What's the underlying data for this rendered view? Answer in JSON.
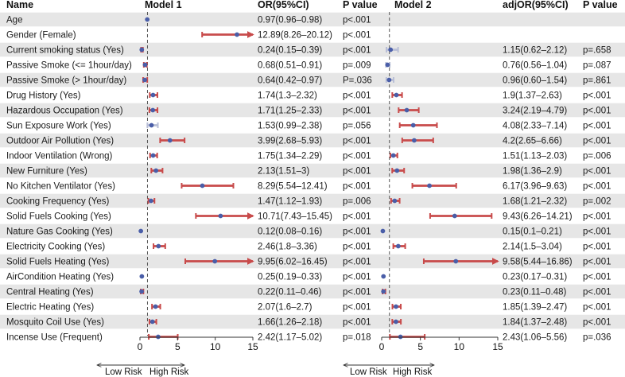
{
  "chart_data": {
    "type": "forest",
    "headers": {
      "name": "Name",
      "model1": "Model 1",
      "or": "OR(95%CI)",
      "p1": "P value",
      "model2": "Model 2",
      "adj_or": "adjOR(95%CI)",
      "p2": "P value"
    },
    "axis": {
      "ticks": [
        0,
        5,
        10,
        15
      ],
      "xlim": [
        0,
        15
      ],
      "reference_line": 1,
      "low_label": "Low Risk",
      "high_label": "High Risk"
    },
    "colors": {
      "stripe": "#e6e6e6",
      "point": "#4a5ea8",
      "ci_significant": "#c84b4b",
      "ci_nonsignificant": "#b9bfd6",
      "reference": "#555555"
    },
    "rows": [
      {
        "name": "Age",
        "m1": {
          "or": 0.97,
          "lo": 0.96,
          "hi": 0.98,
          "label": "0.97(0.96–0.98)",
          "p": "p<.001"
        },
        "m2": null
      },
      {
        "name": "Gender (Female)",
        "m1": {
          "or": 12.89,
          "lo": 8.26,
          "hi": 20.12,
          "label": "12.89(8.26–20.12)",
          "p": "p<.001"
        },
        "m2": null
      },
      {
        "name": "Current smoking status (Yes)",
        "m1": {
          "or": 0.24,
          "lo": 0.15,
          "hi": 0.39,
          "label": "0.24(0.15–0.39)",
          "p": "p<.001"
        },
        "m2": {
          "or": 1.15,
          "lo": 0.62,
          "hi": 2.12,
          "label": "1.15(0.62–2.12)",
          "p": "p=.658"
        }
      },
      {
        "name": "Passive Smoke (<= 1hour/day)",
        "m1": {
          "or": 0.68,
          "lo": 0.51,
          "hi": 0.91,
          "label": "0.68(0.51–0.91)",
          "p": "p=.009"
        },
        "m2": {
          "or": 0.76,
          "lo": 0.56,
          "hi": 1.04,
          "label": "0.76(0.56–1.04)",
          "p": "p=.087"
        }
      },
      {
        "name": "Passive Smoke (> 1hour/day)",
        "m1": {
          "or": 0.64,
          "lo": 0.42,
          "hi": 0.97,
          "label": "0.64(0.42–0.97)",
          "p": "P=.036"
        },
        "m2": {
          "or": 0.96,
          "lo": 0.6,
          "hi": 1.54,
          "label": "0.96(0.60–1.54)",
          "p": "p=.861"
        }
      },
      {
        "name": "Drug History (Yes)",
        "m1": {
          "or": 1.74,
          "lo": 1.3,
          "hi": 2.32,
          "label": "1.74(1.3–2.32)",
          "p": "p<.001"
        },
        "m2": {
          "or": 1.9,
          "lo": 1.37,
          "hi": 2.63,
          "label": "1.9(1.37–2.63)",
          "p": "p<.001"
        }
      },
      {
        "name": "Hazardous Occupation (Yes)",
        "m1": {
          "or": 1.71,
          "lo": 1.25,
          "hi": 2.33,
          "label": "1.71(1.25–2.33)",
          "p": "p<.001"
        },
        "m2": {
          "or": 3.24,
          "lo": 2.19,
          "hi": 4.79,
          "label": "3.24(2.19–4.79)",
          "p": "p<.001"
        }
      },
      {
        "name": "Sun Exposure Work (Yes)",
        "m1": {
          "or": 1.53,
          "lo": 0.99,
          "hi": 2.38,
          "label": "1.53(0.99–2.38)",
          "p": "p=.056"
        },
        "m2": {
          "or": 4.08,
          "lo": 2.33,
          "hi": 7.14,
          "label": "4.08(2.33–7.14)",
          "p": "p<.001"
        }
      },
      {
        "name": "Outdoor Air Pollution (Yes)",
        "m1": {
          "or": 3.99,
          "lo": 2.68,
          "hi": 5.93,
          "label": "3.99(2.68–5.93)",
          "p": "p<.001"
        },
        "m2": {
          "or": 4.2,
          "lo": 2.65,
          "hi": 6.66,
          "label": "4.2(2.65–6.66)",
          "p": "p<.001"
        }
      },
      {
        "name": "Indoor Ventilation (Wrong)",
        "m1": {
          "or": 1.75,
          "lo": 1.34,
          "hi": 2.29,
          "label": "1.75(1.34–2.29)",
          "p": "p<.001"
        },
        "m2": {
          "or": 1.51,
          "lo": 1.13,
          "hi": 2.03,
          "label": "1.51(1.13–2.03)",
          "p": "p=.006"
        }
      },
      {
        "name": "New Furniture (Yes)",
        "m1": {
          "or": 2.13,
          "lo": 1.51,
          "hi": 3,
          "label": "2.13(1.51–3)",
          "p": "p<.001"
        },
        "m2": {
          "or": 1.98,
          "lo": 1.36,
          "hi": 2.9,
          "label": "1.98(1.36–2.9)",
          "p": "p<.001"
        }
      },
      {
        "name": "No Kitchen Ventilator (Yes)",
        "m1": {
          "or": 8.29,
          "lo": 5.54,
          "hi": 12.41,
          "label": "8.29(5.54–12.41)",
          "p": "p<.001"
        },
        "m2": {
          "or": 6.17,
          "lo": 3.96,
          "hi": 9.63,
          "label": "6.17(3.96–9.63)",
          "p": "p<.001"
        }
      },
      {
        "name": "Cooking Frequency (Yes)",
        "m1": {
          "or": 1.47,
          "lo": 1.12,
          "hi": 1.93,
          "label": "1.47(1.12–1.93)",
          "p": "p=.006"
        },
        "m2": {
          "or": 1.68,
          "lo": 1.21,
          "hi": 2.32,
          "label": "1.68(1.21–2.32)",
          "p": "p=.002"
        }
      },
      {
        "name": "Solid Fuels Cooking (Yes)",
        "m1": {
          "or": 10.71,
          "lo": 7.43,
          "hi": 15.45,
          "label": "10.71(7.43–15.45)",
          "p": "p<.001"
        },
        "m2": {
          "or": 9.43,
          "lo": 6.26,
          "hi": 14.21,
          "label": "9.43(6.26–14.21)",
          "p": "p<.001"
        }
      },
      {
        "name": "Nature Gas Cooking (Yes)",
        "m1": {
          "or": 0.12,
          "lo": 0.08,
          "hi": 0.16,
          "label": "0.12(0.08–0.16)",
          "p": "p<.001"
        },
        "m2": {
          "or": 0.15,
          "lo": 0.1,
          "hi": 0.21,
          "label": "0.15(0.1–0.21)",
          "p": "p<.001"
        }
      },
      {
        "name": "Electricity Cooking (Yes)",
        "m1": {
          "or": 2.46,
          "lo": 1.8,
          "hi": 3.36,
          "label": "2.46(1.8–3.36)",
          "p": "p<.001"
        },
        "m2": {
          "or": 2.14,
          "lo": 1.5,
          "hi": 3.04,
          "label": "2.14(1.5–3.04)",
          "p": "p<.001"
        }
      },
      {
        "name": "Solid Fuels Heating (Yes)",
        "m1": {
          "or": 9.95,
          "lo": 6.02,
          "hi": 16.45,
          "label": "9.95(6.02–16.45)",
          "p": "p<.001"
        },
        "m2": {
          "or": 9.58,
          "lo": 5.44,
          "hi": 16.86,
          "label": "9.58(5.44–16.86)",
          "p": "p<.001"
        }
      },
      {
        "name": "AirCondition Heating (Yes)",
        "m1": {
          "or": 0.25,
          "lo": 0.19,
          "hi": 0.33,
          "label": "0.25(0.19–0.33)",
          "p": "p<.001"
        },
        "m2": {
          "or": 0.23,
          "lo": 0.17,
          "hi": 0.31,
          "label": "0.23(0.17–0.31)",
          "p": "p<.001"
        }
      },
      {
        "name": "Central Heating (Yes)",
        "m1": {
          "or": 0.22,
          "lo": 0.11,
          "hi": 0.46,
          "label": "0.22(0.11–0.46)",
          "p": "p<.001"
        },
        "m2": {
          "or": 0.23,
          "lo": 0.11,
          "hi": 0.48,
          "label": "0.23(0.11–0.48)",
          "p": "p<.001"
        }
      },
      {
        "name": "Electric Heating (Yes)",
        "m1": {
          "or": 2.07,
          "lo": 1.6,
          "hi": 2.7,
          "label": "2.07(1.6–2.7)",
          "p": "p<.001"
        },
        "m2": {
          "or": 1.85,
          "lo": 1.39,
          "hi": 2.47,
          "label": "1.85(1.39–2.47)",
          "p": "p<.001"
        }
      },
      {
        "name": "Mosquito Coil Use (Yes)",
        "m1": {
          "or": 1.66,
          "lo": 1.26,
          "hi": 2.18,
          "label": "1.66(1.26–2.18)",
          "p": "p<.001"
        },
        "m2": {
          "or": 1.84,
          "lo": 1.37,
          "hi": 2.48,
          "label": "1.84(1.37–2.48)",
          "p": "p<.001"
        }
      },
      {
        "name": "Incense Use (Frequent)",
        "m1": {
          "or": 2.42,
          "lo": 1.17,
          "hi": 5.02,
          "label": "2.42(1.17–5.02)",
          "p": "p=.018"
        },
        "m2": {
          "or": 2.43,
          "lo": 1.06,
          "hi": 5.56,
          "label": "2.43(1.06–5.56)",
          "p": "p=.036"
        }
      }
    ]
  }
}
